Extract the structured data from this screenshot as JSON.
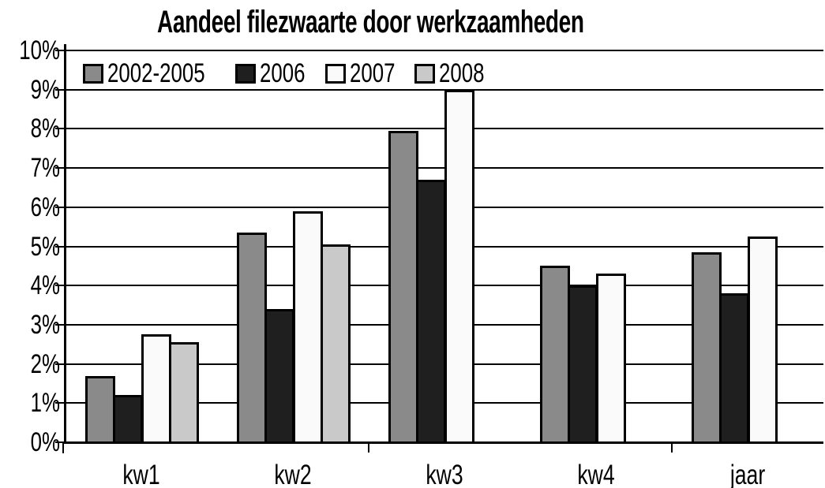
{
  "chart_data": {
    "type": "bar",
    "title": "Aandeel filezwaarte door werkzaamheden",
    "categories": [
      "kw1",
      "kw2",
      "kw3",
      "kw4",
      "jaar"
    ],
    "series": [
      {
        "name": "2002-2005",
        "color": "#8a8a8a",
        "values": [
          1.7,
          5.35,
          7.95,
          4.5,
          4.85
        ]
      },
      {
        "name": "2006",
        "color": "#1f1f1f",
        "values": [
          1.2,
          3.4,
          6.7,
          4.0,
          3.8
        ]
      },
      {
        "name": "2007",
        "color": "#fafafa",
        "values": [
          2.75,
          5.9,
          9.0,
          4.3,
          5.25
        ]
      },
      {
        "name": "2008",
        "color": "#c9c9c9",
        "values": [
          2.55,
          5.05,
          null,
          null,
          null
        ]
      }
    ],
    "ylabel": "",
    "xlabel": "",
    "ylim": [
      0,
      10
    ],
    "y_tick_step": 1,
    "y_tick_labels": [
      "0%",
      "1%",
      "2%",
      "3%",
      "4%",
      "5%",
      "6%",
      "7%",
      "8%",
      "9%",
      "10%"
    ],
    "grid": "horizontal",
    "legend_position": "top-left-inside",
    "bar_outline_color": "#000000",
    "axis_color": "#000000"
  }
}
